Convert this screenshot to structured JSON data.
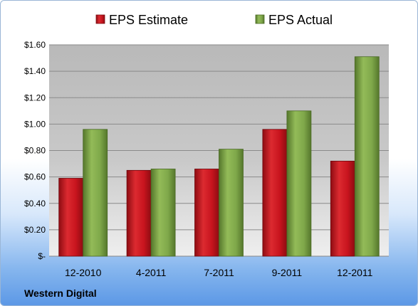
{
  "company": "Western Digital",
  "chart_data": {
    "type": "bar",
    "categories": [
      "12-2010",
      "4-2011",
      "7-2011",
      "9-2011",
      "12-2011"
    ],
    "series": [
      {
        "name": "EPS Estimate",
        "values": [
          0.59,
          0.65,
          0.66,
          0.96,
          0.72
        ],
        "color": "#c8141e"
      },
      {
        "name": "EPS Actual",
        "values": [
          0.96,
          0.66,
          0.81,
          1.1,
          1.51
        ],
        "color": "#7fa84a"
      }
    ],
    "yticks": [
      "$-",
      "$0.20",
      "$0.40",
      "$0.60",
      "$0.80",
      "$1.00",
      "$1.20",
      "$1.40",
      "$1.60"
    ],
    "ylim": [
      0,
      1.6
    ],
    "grid": true,
    "legend_position": "top"
  }
}
